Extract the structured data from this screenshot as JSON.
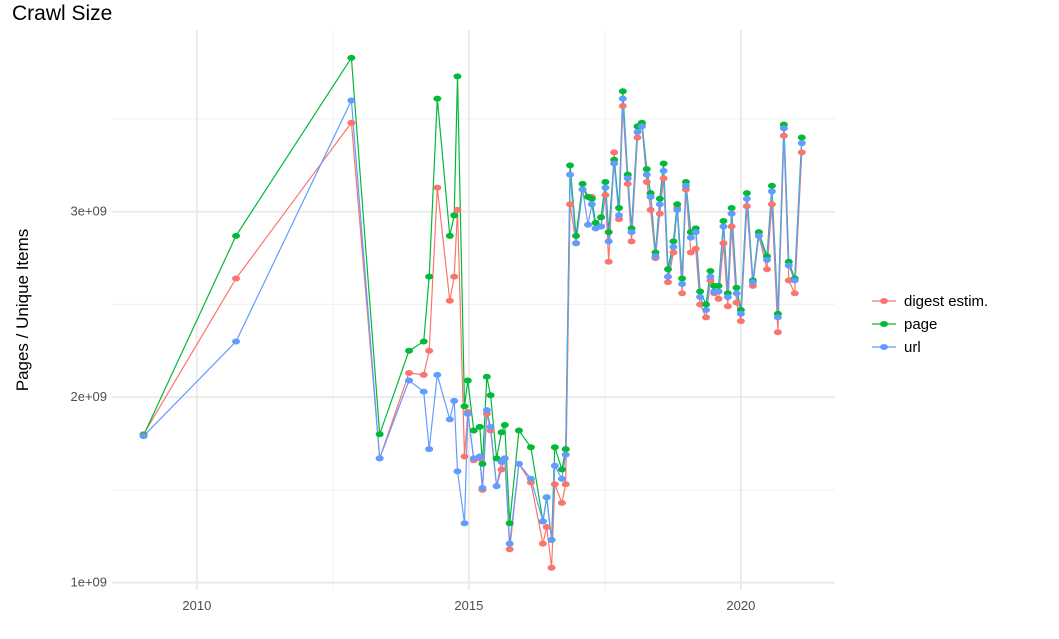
{
  "chart_data": {
    "type": "line",
    "title": "Crawl Size",
    "xlabel": "",
    "ylabel": "Pages / Unique Items",
    "xlim": [
      2008.44,
      2021.73
    ],
    "ylim": [
      960000000.0,
      3980000000.0
    ],
    "x_ticks": [
      2010,
      2015,
      2020
    ],
    "x_tick_labels": [
      "2010",
      "2015",
      "2020"
    ],
    "y_ticks": [
      1000000000.0,
      2000000000.0,
      3000000000.0
    ],
    "y_tick_labels": [
      "1e+09",
      "2e+09",
      "3e+09"
    ],
    "grid": true,
    "legend_position": "right",
    "x": [
      2009.02,
      2010.72,
      2012.84,
      2013.36,
      2013.9,
      2014.17,
      2014.27,
      2014.42,
      2014.65,
      2014.73,
      2014.79,
      2014.92,
      2014.98,
      2015.09,
      2015.2,
      2015.25,
      2015.33,
      2015.4,
      2015.51,
      2015.6,
      2015.66,
      2015.75,
      2015.92,
      2016.14,
      2016.36,
      2016.43,
      2016.52,
      2016.58,
      2016.71,
      2016.78,
      2016.86,
      2016.97,
      2017.09,
      2017.19,
      2017.26,
      2017.33,
      2017.43,
      2017.51,
      2017.57,
      2017.67,
      2017.76,
      2017.83,
      2017.92,
      2017.99,
      2018.1,
      2018.18,
      2018.27,
      2018.34,
      2018.43,
      2018.51,
      2018.58,
      2018.66,
      2018.76,
      2018.83,
      2018.92,
      2018.99,
      2019.08,
      2019.17,
      2019.25,
      2019.36,
      2019.44,
      2019.51,
      2019.59,
      2019.68,
      2019.76,
      2019.83,
      2019.92,
      2020.0,
      2020.11,
      2020.22,
      2020.33,
      2020.48,
      2020.57,
      2020.68,
      2020.79,
      2020.88,
      2020.99,
      2021.12
    ],
    "series": [
      {
        "name": "digest estim.",
        "color": "#F8766D",
        "values": [
          1800000000.0,
          2640000000.0,
          3480000000.0,
          1670000000.0,
          2130000000.0,
          2120000000.0,
          2250000000.0,
          3130000000.0,
          2520000000.0,
          2650000000.0,
          3010000000.0,
          1680000000.0,
          1920000000.0,
          1660000000.0,
          1670000000.0,
          1500000000.0,
          1910000000.0,
          1820000000.0,
          1520000000.0,
          1610000000.0,
          1670000000.0,
          1180000000.0,
          1640000000.0,
          1540000000.0,
          1210000000.0,
          1300000000.0,
          1080000000.0,
          1530000000.0,
          1430000000.0,
          1530000000.0,
          3040000000.0,
          2830000000.0,
          3120000000.0,
          3080000000.0,
          3080000000.0,
          2910000000.0,
          2920000000.0,
          3090000000.0,
          2730000000.0,
          3320000000.0,
          2960000000.0,
          3570000000.0,
          3150000000.0,
          2840000000.0,
          3400000000.0,
          3470000000.0,
          3160000000.0,
          3010000000.0,
          2750000000.0,
          2990000000.0,
          3180000000.0,
          2620000000.0,
          2780000000.0,
          3020000000.0,
          2560000000.0,
          3120000000.0,
          2780000000.0,
          2800000000.0,
          2500000000.0,
          2430000000.0,
          2630000000.0,
          2560000000.0,
          2530000000.0,
          2830000000.0,
          2490000000.0,
          2920000000.0,
          2510000000.0,
          2410000000.0,
          3030000000.0,
          2600000000.0,
          2870000000.0,
          2690000000.0,
          3040000000.0,
          2350000000.0,
          3410000000.0,
          2630000000.0,
          2560000000.0,
          3320000000.0
        ]
      },
      {
        "name": "page",
        "color": "#00BA38",
        "values": [
          1795000000.0,
          2870000000.0,
          3830000000.0,
          1800000000.0,
          2250000000.0,
          2300000000.0,
          2650000000.0,
          3610000000.0,
          2870000000.0,
          2980000000.0,
          3730000000.0,
          1950000000.0,
          2090000000.0,
          1820000000.0,
          1840000000.0,
          1640000000.0,
          2110000000.0,
          2010000000.0,
          1670000000.0,
          1810000000.0,
          1850000000.0,
          1320000000.0,
          1820000000.0,
          1730000000.0,
          1330000000.0,
          1460000000.0,
          1230000000.0,
          1730000000.0,
          1610000000.0,
          1720000000.0,
          3250000000.0,
          2870000000.0,
          3150000000.0,
          3080000000.0,
          3070000000.0,
          2940000000.0,
          2970000000.0,
          3160000000.0,
          2890000000.0,
          3280000000.0,
          3020000000.0,
          3650000000.0,
          3200000000.0,
          2910000000.0,
          3460000000.0,
          3480000000.0,
          3230000000.0,
          3100000000.0,
          2780000000.0,
          3070000000.0,
          3260000000.0,
          2690000000.0,
          2840000000.0,
          3040000000.0,
          2640000000.0,
          3160000000.0,
          2890000000.0,
          2910000000.0,
          2570000000.0,
          2500000000.0,
          2680000000.0,
          2600000000.0,
          2600000000.0,
          2950000000.0,
          2560000000.0,
          3020000000.0,
          2590000000.0,
          2470000000.0,
          3100000000.0,
          2630000000.0,
          2890000000.0,
          2760000000.0,
          3140000000.0,
          2450000000.0,
          3470000000.0,
          2730000000.0,
          2640000000.0,
          3400000000.0
        ]
      },
      {
        "name": "url",
        "color": "#619CFF",
        "values": [
          1790000000.0,
          2300000000.0,
          3600000000.0,
          1670000000.0,
          2090000000.0,
          2030000000.0,
          1720000000.0,
          2120000000.0,
          1880000000.0,
          1980000000.0,
          1600000000.0,
          1320000000.0,
          1910000000.0,
          1670000000.0,
          1680000000.0,
          1510000000.0,
          1930000000.0,
          1840000000.0,
          1520000000.0,
          1650000000.0,
          1670000000.0,
          1210000000.0,
          1640000000.0,
          1560000000.0,
          1330000000.0,
          1460000000.0,
          1230000000.0,
          1630000000.0,
          1560000000.0,
          1690000000.0,
          3200000000.0,
          2830000000.0,
          3120000000.0,
          2930000000.0,
          3040000000.0,
          2910000000.0,
          2920000000.0,
          3130000000.0,
          2840000000.0,
          3260000000.0,
          2980000000.0,
          3610000000.0,
          3180000000.0,
          2890000000.0,
          3430000000.0,
          3460000000.0,
          3200000000.0,
          3080000000.0,
          2760000000.0,
          3040000000.0,
          3220000000.0,
          2650000000.0,
          2810000000.0,
          3010000000.0,
          2610000000.0,
          3140000000.0,
          2860000000.0,
          2890000000.0,
          2540000000.0,
          2470000000.0,
          2650000000.0,
          2570000000.0,
          2570000000.0,
          2920000000.0,
          2540000000.0,
          2990000000.0,
          2560000000.0,
          2450000000.0,
          3070000000.0,
          2620000000.0,
          2870000000.0,
          2740000000.0,
          3110000000.0,
          2430000000.0,
          3450000000.0,
          2710000000.0,
          2630000000.0,
          3370000000.0
        ]
      }
    ]
  }
}
